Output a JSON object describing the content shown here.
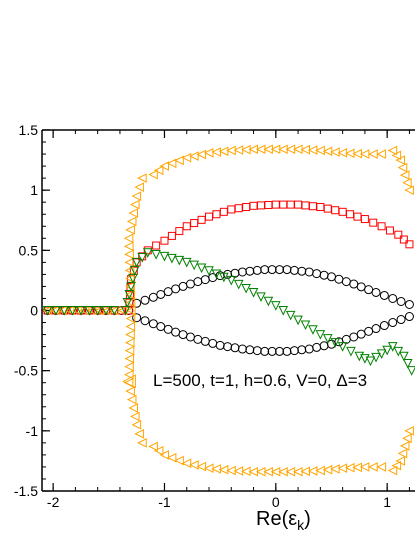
{
  "chart_data": {
    "type": "scatter",
    "title": "",
    "xlabel_main": "Re(ε",
    "xlabel_sub": "k",
    "xlabel_close": ")",
    "ylabel": "",
    "xlim": [
      -2.1,
      1.25
    ],
    "ylim": [
      -1.5,
      1.5
    ],
    "x_ticks": [
      -2,
      -1,
      0,
      1
    ],
    "x_tick_labels": [
      "-2",
      "-1",
      "0",
      "1"
    ],
    "y_ticks": [
      -1.5,
      -1,
      -0.5,
      0,
      0.5,
      1,
      1.5
    ],
    "y_tick_labels": [
      "-1.5",
      "-1",
      "-0.5",
      "0",
      "0.5",
      "1",
      "1.5"
    ],
    "grid": false,
    "annotation": "L=500, t=1, h=0.6, V=0, Δ=3",
    "series": [
      {
        "marker": "circle",
        "color": "#000000",
        "sym": "both",
        "points": [
          [
            -2.05,
            0
          ],
          [
            -1.9,
            0
          ],
          [
            -1.75,
            0
          ],
          [
            -1.6,
            0
          ],
          [
            -1.45,
            0
          ],
          [
            -1.32,
            0
          ],
          [
            -1.25,
            0.06
          ],
          [
            -1.1,
            0.11
          ],
          [
            -0.9,
            0.18
          ],
          [
            -0.7,
            0.24
          ],
          [
            -0.5,
            0.29
          ],
          [
            -0.3,
            0.32
          ],
          [
            -0.1,
            0.34
          ],
          [
            0.1,
            0.34
          ],
          [
            0.3,
            0.32
          ],
          [
            0.5,
            0.28
          ],
          [
            0.7,
            0.22
          ],
          [
            0.9,
            0.15
          ],
          [
            1.05,
            0.1
          ],
          [
            1.2,
            0.05
          ]
        ]
      },
      {
        "marker": "square",
        "color": "#ff0000",
        "sym": "upper",
        "points": [
          [
            -2.05,
            0
          ],
          [
            -1.9,
            0
          ],
          [
            -1.75,
            0
          ],
          [
            -1.6,
            0
          ],
          [
            -1.45,
            0
          ],
          [
            -1.32,
            0
          ],
          [
            -1.3,
            0.26
          ],
          [
            -1.25,
            0.4
          ],
          [
            -1.15,
            0.5
          ],
          [
            -1.0,
            0.58
          ],
          [
            -0.8,
            0.7
          ],
          [
            -0.6,
            0.78
          ],
          [
            -0.4,
            0.84
          ],
          [
            -0.2,
            0.87
          ],
          [
            0.0,
            0.88
          ],
          [
            0.2,
            0.88
          ],
          [
            0.4,
            0.86
          ],
          [
            0.6,
            0.82
          ],
          [
            0.8,
            0.76
          ],
          [
            0.95,
            0.7
          ],
          [
            1.1,
            0.63
          ],
          [
            1.2,
            0.55
          ]
        ]
      },
      {
        "marker": "triangle-left",
        "color": "#ffa500",
        "sym": "both",
        "points": [
          [
            -2.05,
            0
          ],
          [
            -1.85,
            0
          ],
          [
            -1.65,
            0
          ],
          [
            -1.45,
            0
          ],
          [
            -1.3,
            0
          ],
          [
            -1.32,
            0.6
          ],
          [
            -1.25,
            0.95
          ],
          [
            -1.2,
            1.1
          ],
          [
            -1.1,
            1.13
          ],
          [
            -1.0,
            1.2
          ],
          [
            -0.8,
            1.27
          ],
          [
            -0.6,
            1.31
          ],
          [
            -0.4,
            1.33
          ],
          [
            -0.2,
            1.34
          ],
          [
            0.0,
            1.34
          ],
          [
            0.2,
            1.34
          ],
          [
            0.4,
            1.33
          ],
          [
            0.6,
            1.31
          ],
          [
            0.8,
            1.3
          ],
          [
            0.95,
            1.3
          ],
          [
            1.05,
            1.33
          ],
          [
            1.12,
            1.25
          ],
          [
            1.2,
            1.0
          ]
        ]
      },
      {
        "marker": "triangle-down",
        "color": "#008000",
        "sym": "none",
        "points": [
          [
            -2.05,
            0
          ],
          [
            -1.9,
            0
          ],
          [
            -1.75,
            0
          ],
          [
            -1.6,
            0
          ],
          [
            -1.45,
            0
          ],
          [
            -1.35,
            0
          ],
          [
            -1.25,
            0.4
          ],
          [
            -1.15,
            0.48
          ],
          [
            -1.0,
            0.45
          ],
          [
            -0.8,
            0.4
          ],
          [
            -0.6,
            0.33
          ],
          [
            -0.4,
            0.25
          ],
          [
            -0.2,
            0.15
          ],
          [
            0.0,
            0.04
          ],
          [
            0.2,
            -0.08
          ],
          [
            0.4,
            -0.2
          ],
          [
            0.6,
            -0.3
          ],
          [
            0.75,
            -0.38
          ],
          [
            0.85,
            -0.42
          ],
          [
            0.95,
            -0.36
          ],
          [
            1.05,
            -0.3
          ],
          [
            1.15,
            -0.38
          ],
          [
            1.22,
            -0.5
          ]
        ]
      }
    ]
  }
}
